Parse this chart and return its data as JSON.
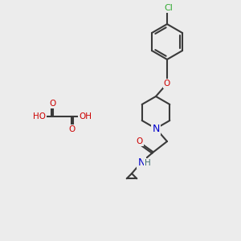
{
  "bg_color": "#ececec",
  "bond_color": "#3a3a3a",
  "atom_colors": {
    "O": "#cc0000",
    "N": "#0000cc",
    "Cl": "#33aa33",
    "H": "#407070",
    "C": "#3a3a3a"
  },
  "font_size": 7.5,
  "figsize": [
    3.0,
    3.0
  ],
  "dpi": 100
}
